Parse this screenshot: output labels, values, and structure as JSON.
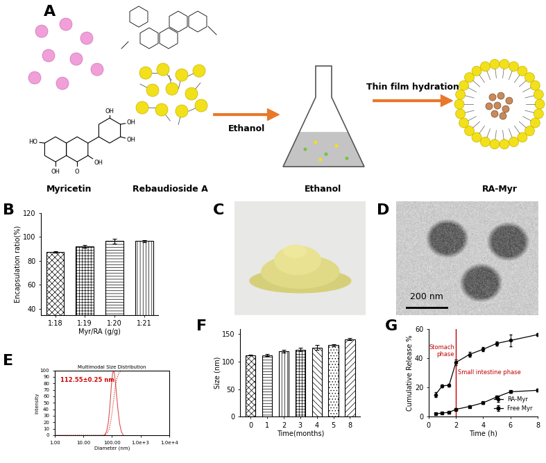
{
  "panel_labels": [
    "A",
    "B",
    "C",
    "D",
    "E",
    "F",
    "G"
  ],
  "diagram": {
    "myricetin_label": "Myricetin",
    "myricetin_atoms": [
      "HO",
      "OH",
      "O",
      "OH",
      "OH",
      "OH",
      "OH"
    ],
    "rebaudioside_label": "Rebaudioside A",
    "arrow1_label": "Ethanol",
    "flask_label": "Ethanol",
    "arrow2_label": "Thin film hydration",
    "product_label": "RA-Myr"
  },
  "tem_image": {
    "scale_bar": "200 nm"
  },
  "chart_data": [
    {
      "type": "bar",
      "categories": [
        "1:18",
        "1:19",
        "1:20",
        "1:21"
      ],
      "values": [
        87.5,
        92,
        96.5,
        96.5
      ],
      "errors": [
        0.8,
        1.0,
        2.0,
        1.0
      ],
      "xlabel": "Myr/RA (g/g)",
      "ylabel": "Encapsulation ratio(%)",
      "ylim": [
        35,
        120
      ],
      "yticks": [
        40,
        60,
        80,
        100,
        120
      ]
    },
    {
      "type": "line",
      "title": "Multimodal Size Distribution",
      "xlabel": "Diameter (nm)",
      "ylabel": "Intensity",
      "log": "x",
      "xlim": [
        1,
        10000
      ],
      "xticks": [
        {
          "value": 1,
          "label": "1.00"
        },
        {
          "value": 10,
          "label": "10.00"
        },
        {
          "value": 100,
          "label": "100.00"
        },
        {
          "value": 1000,
          "label": "1.0e+3"
        },
        {
          "value": 10000,
          "label": "1.0e+4"
        }
      ],
      "ylim": [
        0,
        100
      ],
      "yticks": [
        0,
        10,
        20,
        30,
        40,
        50,
        60,
        70,
        80,
        90,
        100
      ],
      "series": [
        {
          "color": "#d9534f",
          "line_style": "solid",
          "x": [
            55,
            65,
            75,
            85,
            95,
            105,
            115,
            125,
            140,
            160,
            185,
            215,
            250
          ],
          "values": [
            0,
            6,
            20,
            45,
            75,
            95,
            100,
            92,
            70,
            42,
            18,
            5,
            0
          ]
        },
        {
          "color": "#cc0000",
          "line_style": "dotted",
          "x": [
            1,
            50,
            60,
            70,
            80,
            90,
            100,
            110,
            120,
            135,
            150,
            175,
            200,
            300,
            10000
          ],
          "values": [
            0,
            0,
            1,
            4,
            10,
            20,
            33,
            48,
            62,
            78,
            88,
            96,
            99,
            100,
            100
          ]
        }
      ],
      "annotation": "112.55±0.25 nm"
    },
    {
      "type": "bar",
      "categories": [
        "0",
        "1",
        "2",
        "3",
        "4",
        "5",
        "8"
      ],
      "values": [
        112,
        112,
        119,
        122,
        126,
        130,
        141
      ],
      "errors": [
        1,
        1.5,
        2,
        3,
        4,
        2,
        2
      ],
      "xlabel": "Time(months)",
      "ylabel": "Size (nm)",
      "ylim": [
        0,
        160
      ],
      "yticks": [
        0,
        50,
        100,
        150
      ]
    },
    {
      "type": "line",
      "x": [
        0.5,
        1,
        1.5,
        2,
        3,
        4,
        5,
        6,
        8
      ],
      "series": [
        {
          "name": "RA-Myr",
          "color": "#000000",
          "marker": "circle",
          "line_style": "solid",
          "values": [
            15,
            21,
            21.5,
            37,
            42.5,
            46,
            50,
            52,
            56
          ],
          "errors": [
            1.5,
            0.8,
            0.8,
            2,
            1.5,
            1.5,
            1.5,
            4,
            0.8
          ]
        },
        {
          "name": "Free Myr",
          "color": "#000000",
          "marker": "square",
          "line_style": "solid",
          "values": [
            2,
            2.5,
            3,
            5,
            7,
            9.5,
            13.5,
            17,
            18
          ],
          "errors": [
            0.5,
            0.5,
            0.5,
            0.6,
            0.6,
            0.6,
            0.8,
            0.8,
            1.0
          ]
        }
      ],
      "xlabel": "Time (h)",
      "ylabel": "Cumulative Release %",
      "xlim": [
        0,
        8
      ],
      "xticks": [
        0,
        2,
        4,
        6,
        8
      ],
      "ylim": [
        0,
        60
      ],
      "yticks": [
        0,
        20,
        40,
        60
      ],
      "legend": "lower right",
      "phase_boundary": 2,
      "annotations": [
        "Stomach\nphase",
        "Small intestine phase"
      ]
    }
  ]
}
